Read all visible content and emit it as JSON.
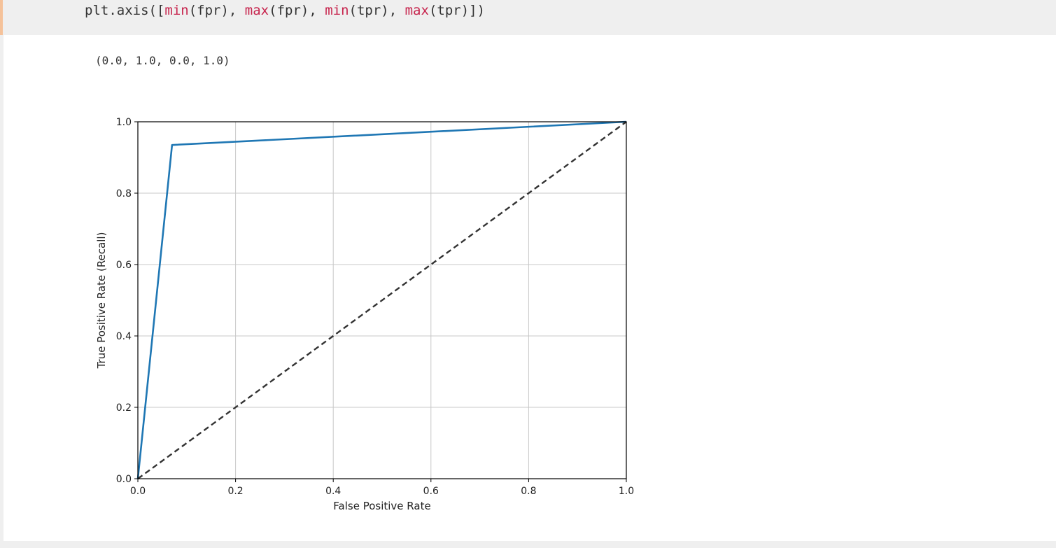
{
  "input_cell": {
    "code_tokens": [
      {
        "text": "plt.axis([",
        "kind": "plain"
      },
      {
        "text": "min",
        "kind": "fn"
      },
      {
        "text": "(fpr), ",
        "kind": "plain"
      },
      {
        "text": "max",
        "kind": "fn"
      },
      {
        "text": "(fpr), ",
        "kind": "plain"
      },
      {
        "text": "min",
        "kind": "fn"
      },
      {
        "text": "(tpr), ",
        "kind": "plain"
      },
      {
        "text": "max",
        "kind": "fn"
      },
      {
        "text": "(tpr)])",
        "kind": "plain"
      }
    ]
  },
  "output": {
    "text": "(0.0, 1.0, 0.0, 1.0)"
  },
  "colors": {
    "cell_background": "#efefef",
    "cell_marker": "#f5c29a",
    "builtin_function": "#c7254e",
    "roc_line": "#1f77b4",
    "diagonal": "#333333",
    "grid": "#c8c8c8"
  },
  "chart_data": {
    "type": "line",
    "xlabel": "False Positive Rate",
    "ylabel": "True Positive Rate (Recall)",
    "xlim": [
      0.0,
      1.0
    ],
    "ylim": [
      0.0,
      1.0
    ],
    "xticks": [
      "0.0",
      "0.2",
      "0.4",
      "0.6",
      "0.8",
      "1.0"
    ],
    "yticks": [
      "0.0",
      "0.2",
      "0.4",
      "0.6",
      "0.8",
      "1.0"
    ],
    "grid": true,
    "series": [
      {
        "style": "solid",
        "color": "#1f77b4",
        "x": [
          0.0,
          0.07,
          1.0
        ],
        "y": [
          0.0,
          0.935,
          1.0
        ]
      },
      {
        "style": "dashed",
        "color": "#333333",
        "x": [
          0.0,
          1.0
        ],
        "y": [
          0.0,
          1.0
        ]
      }
    ]
  }
}
